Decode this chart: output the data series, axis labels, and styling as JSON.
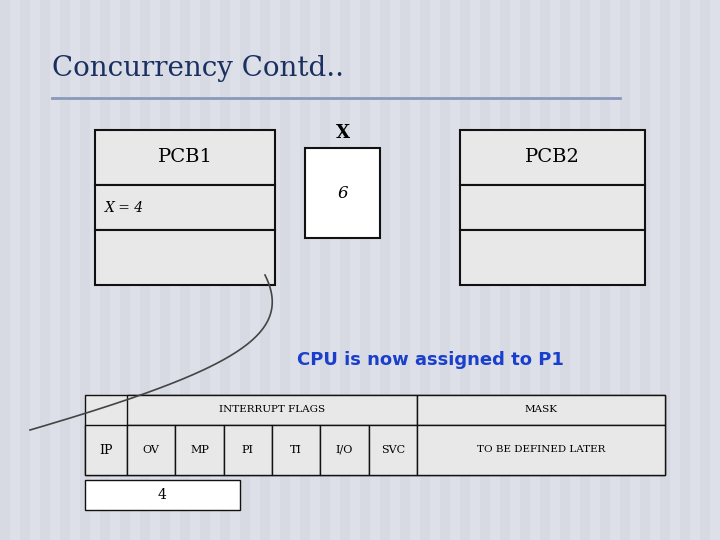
{
  "title": "Concurrency Contd..",
  "title_color": "#1a3060",
  "title_fontsize": 20,
  "bg_color": "#dde0e8",
  "box_facecolor": "#e8e8e8",
  "box_edge": "#111111",
  "pcb1_label": "PCB1",
  "pcb2_label": "PCB2",
  "x_label": "X",
  "x_value": "6",
  "x_eq": "X = 4",
  "cpu_text": "CPU is now assigned to P1",
  "cpu_text_color": "#1a3fcc",
  "interrupt_header": "INTERRUPT FLAGS",
  "mask_header": "MASK",
  "ip_label": "IP",
  "interrupt_cols": [
    "OV",
    "MP",
    "PI",
    "TI",
    "I/O",
    "SVC"
  ],
  "mask_text": "TO BE DEFINED LATER",
  "bottom_value": "4",
  "hline_color": "#8899bb",
  "curve_color": "#444444",
  "white": "#ffffff"
}
